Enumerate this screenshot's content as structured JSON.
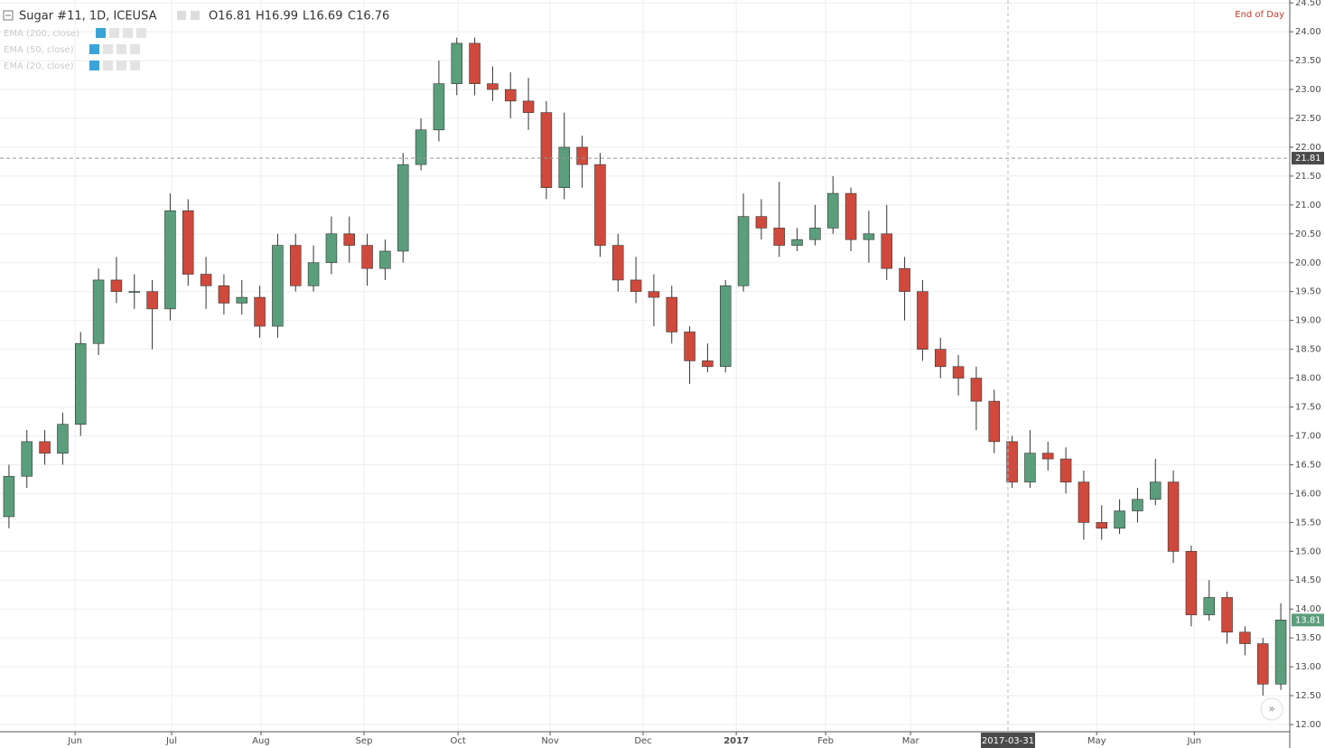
{
  "chart_data": {
    "type": "candlestick",
    "title": "Sugar #11, 1D, ICEUSA",
    "ohlc_labels": [
      "O16.81",
      "H16.99",
      "L16.69",
      "C16.76"
    ],
    "indicators": [
      "EMA (200, close)",
      "EMA (50, close)",
      "EMA (20, close)"
    ],
    "range_label": "End of Day",
    "crosshair": {
      "price": 21.81,
      "date": "2017-03-31"
    },
    "up_color": "#5b9e7c",
    "down_color": "#cf4a3c",
    "grid": true,
    "open": [
      15.6,
      16.3,
      16.9,
      16.7,
      17.2,
      18.6,
      19.7,
      19.5,
      19.5,
      19.2,
      20.9,
      19.8,
      19.6,
      19.3,
      19.4,
      18.9,
      20.3,
      19.6,
      20.0,
      20.5,
      20.3,
      19.9,
      20.2,
      21.7,
      22.3,
      23.1,
      23.8,
      23.1,
      23.0,
      22.8,
      22.6,
      21.3,
      22.0,
      21.7,
      20.3,
      19.7,
      19.5,
      19.4,
      18.8,
      18.3,
      18.2,
      19.6,
      20.8,
      20.6,
      20.3,
      20.4,
      20.6,
      21.2,
      20.4,
      20.5,
      19.9,
      19.5,
      18.5,
      18.2,
      18.0,
      17.6,
      16.9,
      16.2,
      16.7,
      16.6,
      16.2,
      15.5,
      15.4,
      15.7,
      15.9,
      16.2,
      15.0,
      13.9,
      14.2,
      13.6,
      13.4,
      12.7
    ],
    "high": [
      16.5,
      17.1,
      17.1,
      17.4,
      18.8,
      19.9,
      20.1,
      19.8,
      19.7,
      21.2,
      21.1,
      20.1,
      19.8,
      19.7,
      19.6,
      20.5,
      20.5,
      20.3,
      20.8,
      20.8,
      20.5,
      20.4,
      21.9,
      22.5,
      23.5,
      23.9,
      23.9,
      23.4,
      23.3,
      23.2,
      22.8,
      22.6,
      22.2,
      21.9,
      20.5,
      20.1,
      19.8,
      19.6,
      18.9,
      18.6,
      19.7,
      21.2,
      21.1,
      21.4,
      20.6,
      21.0,
      21.5,
      21.3,
      20.9,
      21.0,
      20.1,
      19.7,
      18.7,
      18.4,
      18.2,
      17.8,
      17.0,
      17.1,
      16.9,
      16.8,
      16.4,
      15.8,
      15.9,
      16.1,
      16.6,
      16.4,
      15.1,
      14.5,
      14.3,
      13.7,
      13.5,
      14.1
    ],
    "low": [
      15.4,
      16.1,
      16.5,
      16.5,
      17.0,
      18.4,
      19.3,
      19.2,
      18.5,
      19.0,
      19.6,
      19.2,
      19.1,
      19.1,
      18.7,
      18.7,
      19.5,
      19.5,
      19.8,
      20.0,
      19.6,
      19.7,
      20.0,
      21.6,
      22.1,
      22.9,
      22.9,
      22.8,
      22.5,
      22.3,
      21.1,
      21.1,
      21.3,
      20.1,
      19.5,
      19.3,
      18.9,
      18.6,
      17.9,
      18.1,
      18.1,
      19.5,
      20.4,
      20.1,
      20.2,
      20.3,
      20.5,
      20.2,
      20.0,
      19.7,
      19.0,
      18.3,
      18.0,
      17.7,
      17.1,
      16.7,
      16.1,
      16.1,
      16.4,
      16.0,
      15.2,
      15.2,
      15.3,
      15.5,
      15.8,
      14.8,
      13.7,
      13.8,
      13.4,
      13.2,
      12.5,
      12.6
    ],
    "close": [
      16.3,
      16.9,
      16.7,
      17.2,
      18.6,
      19.7,
      19.5,
      19.5,
      19.2,
      20.9,
      19.8,
      19.6,
      19.3,
      19.4,
      18.9,
      20.3,
      19.6,
      20.0,
      20.5,
      20.3,
      19.9,
      20.2,
      21.7,
      22.3,
      23.1,
      23.8,
      23.1,
      23.0,
      22.8,
      22.6,
      21.3,
      22.0,
      21.7,
      20.3,
      19.7,
      19.5,
      19.4,
      18.8,
      18.3,
      18.2,
      19.6,
      20.8,
      20.6,
      20.3,
      20.4,
      20.6,
      21.2,
      20.4,
      20.5,
      19.9,
      19.5,
      18.5,
      18.2,
      18.0,
      17.6,
      16.9,
      16.2,
      16.7,
      16.6,
      16.2,
      15.5,
      15.4,
      15.7,
      15.9,
      16.2,
      15.0,
      13.9,
      14.2,
      13.6,
      13.4,
      12.7,
      13.81
    ],
    "xlim": [
      -0.5,
      71.5
    ],
    "xticks": [
      {
        "value": 3.69,
        "label": "Jun"
      },
      {
        "value": 9.08,
        "label": "Jul"
      },
      {
        "value": 14.07,
        "label": "Aug"
      },
      {
        "value": 19.82,
        "label": "Sep"
      },
      {
        "value": 25.07,
        "label": "Oct"
      },
      {
        "value": 30.21,
        "label": "Nov"
      },
      {
        "value": 35.4,
        "label": "Dec"
      },
      {
        "value": 40.6,
        "label": "2017"
      },
      {
        "value": 45.59,
        "label": "Feb"
      },
      {
        "value": 50.33,
        "label": "Mar"
      },
      {
        "value": 60.72,
        "label": "May"
      },
      {
        "value": 66.17,
        "label": "Jun"
      }
    ],
    "ylim": [
      11.875,
      24.55
    ],
    "yticks": [
      {
        "value": 12,
        "label": "12.00"
      },
      {
        "value": 12.5,
        "label": "12.50"
      },
      {
        "value": 13,
        "label": "13.00"
      },
      {
        "value": 13.5,
        "label": "13.50"
      },
      {
        "value": 14,
        "label": "14.00"
      },
      {
        "value": 14.5,
        "label": "14.50"
      },
      {
        "value": 15,
        "label": "15.00"
      },
      {
        "value": 15.5,
        "label": "15.50"
      },
      {
        "value": 16,
        "label": "16.00"
      },
      {
        "value": 16.5,
        "label": "16.50"
      },
      {
        "value": 17,
        "label": "17.00"
      },
      {
        "value": 17.5,
        "label": "17.50"
      },
      {
        "value": 18,
        "label": "18.00"
      },
      {
        "value": 18.5,
        "label": "18.50"
      },
      {
        "value": 19,
        "label": "19.00"
      },
      {
        "value": 19.5,
        "label": "19.50"
      },
      {
        "value": 20,
        "label": "20.00"
      },
      {
        "value": 20.5,
        "label": "20.50"
      },
      {
        "value": 21,
        "label": "21.00"
      },
      {
        "value": 21.5,
        "label": "21.50"
      },
      {
        "value": 22,
        "label": "22.00"
      },
      {
        "value": 22.5,
        "label": "22.50"
      },
      {
        "value": 23,
        "label": "23.00"
      },
      {
        "value": 23.5,
        "label": "23.50"
      },
      {
        "value": 24,
        "label": "24.00"
      },
      {
        "value": 24.5,
        "label": "24.50"
      }
    ]
  }
}
